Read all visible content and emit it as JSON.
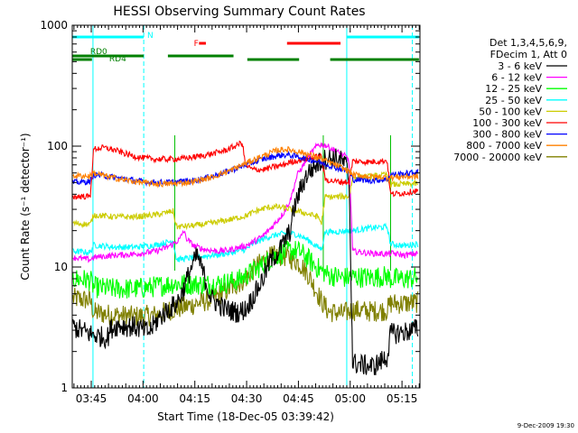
{
  "chart_data": {
    "type": "line",
    "title": "HESSI Observing Summary Count Rates",
    "xlabel": "Start Time (18-Dec-05 03:39:42)",
    "ylabel": "Count Rate (s⁻¹ detector⁻¹)",
    "y_scale": "log",
    "ylim": [
      1,
      1000
    ],
    "xlim_minutes": [
      -0.2,
      100.5
    ],
    "x_tick_labels": [
      "03:45",
      "04:00",
      "04:15",
      "04:30",
      "04:45",
      "05:00",
      "05:15"
    ],
    "x_tick_minutes": [
      5.3,
      20.3,
      35.3,
      50.3,
      65.3,
      80.3,
      95.3
    ],
    "y_tick_labels": [
      "1",
      "10",
      "100",
      "1000"
    ],
    "y_tick_values": [
      1,
      10,
      100,
      1000
    ],
    "timestamp": "9-Dec-2009 19:30",
    "legend_header": [
      "Det 1,3,4,5,6,9,",
      "FDecim 1, Att 0"
    ],
    "legend_position": "right",
    "series": [
      {
        "name": "3 - 6 keV",
        "color": "#000000",
        "points": [
          [
            0,
            3.2
          ],
          [
            5,
            2.8
          ],
          [
            7,
            2.7
          ],
          [
            10,
            2.6
          ],
          [
            11,
            3.1
          ],
          [
            13,
            3.3
          ],
          [
            18,
            3.2
          ],
          [
            22,
            2.9
          ],
          [
            25,
            3.8
          ],
          [
            27,
            4.3
          ],
          [
            30,
            5.0
          ],
          [
            32,
            6.5
          ],
          [
            34,
            9.5
          ],
          [
            36,
            12.5
          ],
          [
            38,
            8.5
          ],
          [
            40,
            5.5
          ],
          [
            44,
            4.5
          ],
          [
            48,
            4.2
          ],
          [
            50,
            4.5
          ],
          [
            52,
            5.5
          ],
          [
            55,
            8
          ],
          [
            57,
            11
          ],
          [
            60,
            14
          ],
          [
            63,
            20
          ],
          [
            64,
            30
          ],
          [
            66,
            45
          ],
          [
            68,
            60
          ],
          [
            71,
            72
          ],
          [
            73,
            78
          ],
          [
            75,
            80
          ],
          [
            77,
            78
          ],
          [
            79,
            70
          ],
          [
            80,
            52
          ],
          [
            81,
            1.6
          ],
          [
            87,
            1.5
          ],
          [
            91,
            1.8
          ],
          [
            92,
            2.8
          ],
          [
            96,
            2.9
          ],
          [
            100,
            3.1
          ]
        ]
      },
      {
        "name": "6 - 12 keV",
        "color": "#ff00ff",
        "points": [
          [
            0,
            12
          ],
          [
            5,
            11.5
          ],
          [
            6,
            12
          ],
          [
            12,
            12.5
          ],
          [
            18,
            12.8
          ],
          [
            24,
            13.5
          ],
          [
            27,
            14.5
          ],
          [
            29,
            15.5
          ],
          [
            31,
            17
          ],
          [
            32,
            20
          ],
          [
            33,
            17
          ],
          [
            35,
            15
          ],
          [
            38,
            14
          ],
          [
            42,
            13.5
          ],
          [
            45,
            13.8
          ],
          [
            48,
            14.5
          ],
          [
            50,
            15
          ],
          [
            52,
            16
          ],
          [
            55,
            18
          ],
          [
            58,
            22
          ],
          [
            61,
            28
          ],
          [
            63,
            36
          ],
          [
            64,
            46
          ],
          [
            65,
            58
          ],
          [
            67,
            72
          ],
          [
            69,
            88
          ],
          [
            71,
            103
          ],
          [
            73,
            102
          ],
          [
            75,
            95
          ],
          [
            77,
            88
          ],
          [
            79,
            82
          ],
          [
            80,
            75
          ],
          [
            81,
            13.5
          ],
          [
            86,
            13
          ],
          [
            91,
            12.8
          ],
          [
            92,
            13
          ],
          [
            96,
            12.5
          ],
          [
            100,
            13
          ]
        ]
      },
      {
        "name": "12 - 25 keV",
        "color": "#00ff00",
        "points": [
          [
            0,
            8
          ],
          [
            5,
            7.8
          ],
          [
            6,
            6.8
          ],
          [
            12,
            6.6
          ],
          [
            18,
            6.6
          ],
          [
            24,
            6.9
          ],
          [
            29,
            7.3
          ],
          [
            34,
            7.2
          ],
          [
            40,
            7.2
          ],
          [
            44,
            7.4
          ],
          [
            48,
            7.8
          ],
          [
            50,
            8.5
          ],
          [
            53,
            9.5
          ],
          [
            56,
            11
          ],
          [
            59,
            12.5
          ],
          [
            62,
            13.5
          ],
          [
            64,
            13.8
          ],
          [
            66,
            13.2
          ],
          [
            68,
            11.8
          ],
          [
            70,
            10.3
          ],
          [
            72,
            9.3
          ],
          [
            74,
            8.6
          ],
          [
            78,
            8.2
          ],
          [
            80,
            8.2
          ],
          [
            81,
            8.3
          ],
          [
            86,
            8.2
          ],
          [
            91,
            8.4
          ],
          [
            92,
            8
          ],
          [
            96,
            8
          ],
          [
            100,
            8.2
          ]
        ]
      },
      {
        "name": "25 - 50 keV",
        "color": "#00ffff",
        "points": [
          [
            0,
            13.5
          ],
          [
            5,
            13.2
          ],
          [
            6,
            15.2
          ],
          [
            12,
            14.6
          ],
          [
            18,
            14.6
          ],
          [
            24,
            15.2
          ],
          [
            29,
            16.5
          ],
          [
            30,
            11.5
          ],
          [
            35,
            12
          ],
          [
            40,
            12.5
          ],
          [
            45,
            13
          ],
          [
            50,
            14
          ],
          [
            53,
            16
          ],
          [
            56,
            17.5
          ],
          [
            59,
            18.5
          ],
          [
            62,
            19
          ],
          [
            64,
            18.8
          ],
          [
            66,
            18
          ],
          [
            68,
            16.8
          ],
          [
            70,
            15.2
          ],
          [
            72,
            14
          ],
          [
            73,
            19.5
          ],
          [
            76,
            19.5
          ],
          [
            80,
            20
          ],
          [
            81,
            20
          ],
          [
            86,
            21
          ],
          [
            91,
            21.5
          ],
          [
            92,
            15.5
          ],
          [
            96,
            15
          ],
          [
            100,
            15.5
          ]
        ]
      },
      {
        "name": "50 - 100 keV",
        "color": "#cccc00",
        "points": [
          [
            0,
            23
          ],
          [
            5,
            22.5
          ],
          [
            6,
            27
          ],
          [
            12,
            26
          ],
          [
            18,
            26
          ],
          [
            24,
            27
          ],
          [
            29,
            29
          ],
          [
            30,
            21.5
          ],
          [
            35,
            22
          ],
          [
            40,
            23
          ],
          [
            45,
            24.5
          ],
          [
            50,
            26.5
          ],
          [
            53,
            29
          ],
          [
            56,
            31
          ],
          [
            59,
            31.5
          ],
          [
            62,
            30.5
          ],
          [
            65,
            29
          ],
          [
            68,
            27.5
          ],
          [
            71,
            26
          ],
          [
            72,
            23
          ],
          [
            73,
            38
          ],
          [
            76,
            38
          ],
          [
            80,
            38.5
          ],
          [
            81,
            55
          ],
          [
            86,
            56
          ],
          [
            91,
            58
          ],
          [
            92,
            48
          ],
          [
            96,
            48.5
          ],
          [
            100,
            49
          ]
        ]
      },
      {
        "name": "100 - 300 keV",
        "color": "#ff0000",
        "points": [
          [
            0,
            38
          ],
          [
            3,
            38.5
          ],
          [
            5,
            38
          ],
          [
            6,
            95
          ],
          [
            9,
            97
          ],
          [
            12,
            93
          ],
          [
            16,
            85
          ],
          [
            20,
            80
          ],
          [
            24,
            78
          ],
          [
            28,
            78
          ],
          [
            32,
            79
          ],
          [
            36,
            82
          ],
          [
            40,
            86
          ],
          [
            44,
            92
          ],
          [
            47,
            100
          ],
          [
            49,
            108
          ],
          [
            50,
            70
          ],
          [
            52,
            64
          ],
          [
            55,
            64
          ],
          [
            58,
            67
          ],
          [
            61,
            70
          ],
          [
            63,
            74
          ],
          [
            66,
            77
          ],
          [
            69,
            80
          ],
          [
            72,
            83
          ],
          [
            73,
            53
          ],
          [
            76,
            51
          ],
          [
            80,
            50.5
          ],
          [
            81,
            75
          ],
          [
            86,
            74
          ],
          [
            91,
            76
          ],
          [
            92,
            40
          ],
          [
            96,
            41
          ],
          [
            100,
            43
          ]
        ]
      },
      {
        "name": "300 - 800 keV",
        "color": "#0000ff",
        "points": [
          [
            0,
            50
          ],
          [
            5,
            51
          ],
          [
            6,
            58
          ],
          [
            9,
            57
          ],
          [
            14,
            54
          ],
          [
            20,
            51
          ],
          [
            25,
            50
          ],
          [
            30,
            50.5
          ],
          [
            35,
            52
          ],
          [
            40,
            56
          ],
          [
            45,
            62
          ],
          [
            50,
            70
          ],
          [
            55,
            78
          ],
          [
            59,
            83
          ],
          [
            61,
            84.5
          ],
          [
            63,
            84
          ],
          [
            66,
            81
          ],
          [
            69,
            77
          ],
          [
            72,
            73
          ],
          [
            75,
            68
          ],
          [
            78,
            64
          ],
          [
            80,
            62
          ],
          [
            81,
            53
          ],
          [
            86,
            52
          ],
          [
            91,
            53
          ],
          [
            92,
            58
          ],
          [
            96,
            59
          ],
          [
            100,
            61
          ]
        ]
      },
      {
        "name": "800 - 7000 keV",
        "color": "#ff8000",
        "points": [
          [
            0,
            57
          ],
          [
            5,
            56.5
          ],
          [
            6,
            60
          ],
          [
            9,
            57
          ],
          [
            14,
            53
          ],
          [
            20,
            50
          ],
          [
            25,
            48.5
          ],
          [
            30,
            49
          ],
          [
            35,
            51
          ],
          [
            40,
            55
          ],
          [
            45,
            62
          ],
          [
            50,
            72
          ],
          [
            55,
            83
          ],
          [
            59,
            92
          ],
          [
            61,
            94
          ],
          [
            63,
            93
          ],
          [
            66,
            89
          ],
          [
            69,
            84
          ],
          [
            72,
            78
          ],
          [
            75,
            72
          ],
          [
            78,
            66
          ],
          [
            80,
            62
          ],
          [
            81,
            58
          ],
          [
            86,
            56
          ],
          [
            91,
            55
          ],
          [
            92,
            55
          ],
          [
            96,
            56
          ],
          [
            100,
            56
          ]
        ]
      },
      {
        "name": "7000 - 20000 keV",
        "color": "#808000",
        "points": [
          [
            0,
            5.5
          ],
          [
            5,
            5.3
          ],
          [
            6,
            4.2
          ],
          [
            12,
            4.0
          ],
          [
            18,
            3.9
          ],
          [
            24,
            4.0
          ],
          [
            29,
            4.5
          ],
          [
            30,
            4.5
          ],
          [
            35,
            4.9
          ],
          [
            40,
            5.4
          ],
          [
            45,
            6.5
          ],
          [
            50,
            8
          ],
          [
            53,
            10
          ],
          [
            56,
            11.8
          ],
          [
            59,
            12.5
          ],
          [
            62,
            12.2
          ],
          [
            64,
            11.5
          ],
          [
            66,
            10.5
          ],
          [
            68,
            8.8
          ],
          [
            70,
            6.8
          ],
          [
            72,
            5.2
          ],
          [
            74,
            4.3
          ],
          [
            78,
            4.1
          ],
          [
            80,
            4.3
          ],
          [
            81,
            4.4
          ],
          [
            86,
            4.3
          ],
          [
            91,
            4.4
          ],
          [
            92,
            5
          ],
          [
            96,
            5
          ],
          [
            100,
            5.1
          ]
        ]
      }
    ],
    "flags": [
      {
        "label": "N",
        "color": "#00ffff",
        "label_at_minutes": 21.5,
        "segments": [
          [
            -0.2,
            20.5
          ],
          [
            79.3,
            100.2
          ]
        ]
      },
      {
        "label": "F",
        "color": "#ff0000",
        "label_at_minutes": 35.0,
        "segments": [
          [
            36.5,
            38.5
          ],
          [
            62.0,
            77.5
          ]
        ]
      },
      {
        "label": "RD0",
        "color": "#008000",
        "label_at_minutes": 5.0,
        "segments": [
          [
            -0.2,
            20.5
          ],
          [
            27.5,
            46.5
          ]
        ]
      },
      {
        "label": "RD4",
        "color": "#008000",
        "label_at_minutes": 10.5,
        "segments": [
          [
            -0.2,
            5.5
          ],
          [
            50.5,
            65.5
          ],
          [
            74.5,
            100.2
          ]
        ]
      }
    ],
    "night_boundaries_minutes": [
      5.8,
      79.3
    ],
    "day_boundaries_minutes": [
      20.5,
      98.3
    ],
    "attenuator_transitions_minutes": [
      29.5,
      72.5,
      92.0
    ],
    "grid": false
  }
}
